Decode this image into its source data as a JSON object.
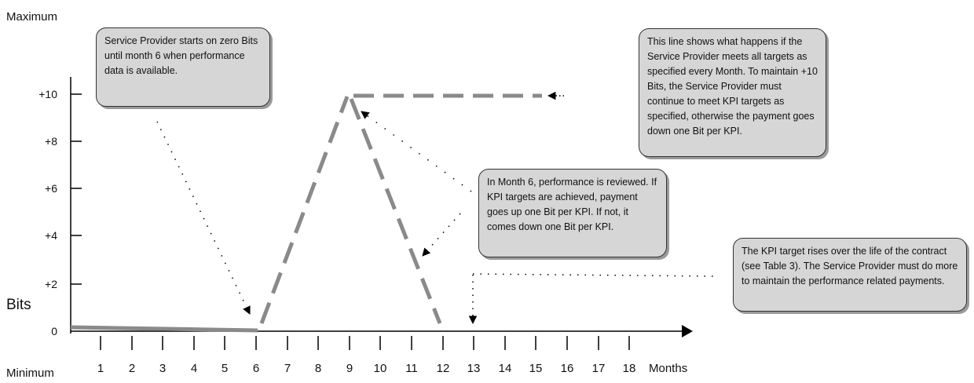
{
  "axis": {
    "y_top_label": "Maximum",
    "y_bottom_label": "Minimum",
    "y_axis_title": "Bits",
    "x_axis_title": "Months",
    "y_ticks": [
      "+10",
      "+8",
      "+6",
      "+4",
      "+2",
      "0"
    ],
    "x_ticks": [
      "1",
      "2",
      "3",
      "4",
      "5",
      "6",
      "7",
      "8",
      "9",
      "10",
      "11",
      "12",
      "13",
      "14",
      "15",
      "16",
      "17",
      "18"
    ]
  },
  "annotations": {
    "start_note": "Service Provider starts on zero Bits until month 6 when performance data is available.",
    "top_line_note": "This line shows what happens if the Service Provider meets all targets as specified every Month.  To maintain +10 Bits, the Service Provider must continue to meet KPI targets as specified, otherwise the payment goes down one Bit per KPI.",
    "review_note": "In Month 6, performance is reviewed.  If KPI targets are achieved, payment goes up one Bit per KPI.  If not, it comes down one Bit per KPI.",
    "kpi_target_note": "The KPI target rises over the life of the contract (see Table 3).  The Service Provider must do more to maintain the performance related payments."
  },
  "colors": {
    "line_gray": "#8a8a8a",
    "note_fill": "#d6d6d6",
    "axis": "#000000"
  },
  "chart_data": {
    "type": "line",
    "xlabel": "Months",
    "ylabel": "Bits",
    "x_range": [
      0,
      19
    ],
    "y_range": [
      0,
      10
    ],
    "series": [
      {
        "style": "solid",
        "x": [
          0,
          6
        ],
        "y": [
          0.2,
          0
        ]
      },
      {
        "style": "dashed",
        "x": [
          6,
          9,
          12
        ],
        "y": [
          0,
          10,
          0
        ]
      },
      {
        "style": "dashed",
        "x": [
          9,
          16
        ],
        "y": [
          10,
          10
        ]
      },
      {
        "style": "dotted",
        "x": [
          13,
          13,
          16,
          17,
          18,
          19
        ],
        "y": [
          2,
          2.5,
          2.5,
          2.5,
          2.5,
          2.5
        ]
      }
    ]
  }
}
